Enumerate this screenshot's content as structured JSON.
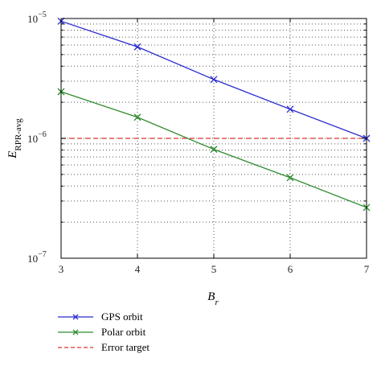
{
  "chart_data": {
    "type": "line",
    "x": [
      3,
      4,
      5,
      6,
      7
    ],
    "xlabel": "B",
    "xlabel_sub": "r",
    "ylabel": "E",
    "ylabel_sub": "RPR-avg",
    "xlim": [
      3,
      7
    ],
    "ylim": [
      1e-07,
      1e-05
    ],
    "yscale": "log",
    "grid": true,
    "x_ticks": [
      "3",
      "4",
      "5",
      "6",
      "7"
    ],
    "y_ticks": [
      {
        "value": 1e-05,
        "base": "10",
        "exp": "−5"
      },
      {
        "value": 1e-06,
        "base": "10",
        "exp": "−6"
      },
      {
        "value": 1e-07,
        "base": "10",
        "exp": "−7"
      }
    ],
    "legend_position": "below",
    "series": [
      {
        "name": "GPS orbit",
        "color": "#2b2bd0",
        "marker": "x",
        "style": "solid",
        "values": [
          9.5e-06,
          5.8e-06,
          3.1e-06,
          1.75e-06,
          1e-06
        ]
      },
      {
        "name": "Polar orbit",
        "color": "#2e8b2e",
        "marker": "x",
        "style": "solid",
        "values": [
          2.45e-06,
          1.5e-06,
          8.1e-07,
          4.7e-07,
          2.65e-07
        ]
      },
      {
        "name": "Error target",
        "color": "#e03030",
        "marker": "none",
        "style": "dashed",
        "values": [
          1e-06,
          1e-06,
          1e-06,
          1e-06,
          1e-06
        ]
      }
    ]
  }
}
